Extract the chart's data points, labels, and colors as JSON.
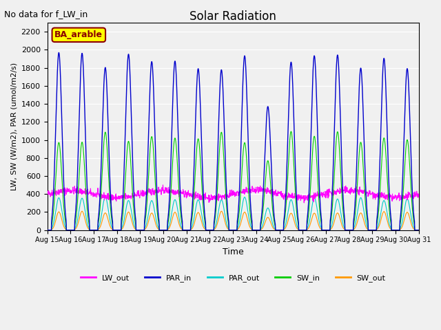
{
  "title": "Solar Radiation",
  "suptitle": "No data for f_LW_in",
  "xlabel": "Time",
  "ylabel": "LW, SW (W/m2), PAR (umol/m2/s)",
  "site_label": "BA_arable",
  "ylim": [
    0,
    2300
  ],
  "yticks": [
    0,
    200,
    400,
    600,
    800,
    1000,
    1200,
    1400,
    1600,
    1800,
    2000,
    2200
  ],
  "n_days": 16,
  "start_day": 15,
  "colors": {
    "LW_out": "#ff00ff",
    "PAR_in": "#0000cc",
    "PAR_out": "#00cccc",
    "SW_in": "#00cc00",
    "SW_out": "#ff9900"
  },
  "legend_labels": [
    "LW_out",
    "PAR_in",
    "PAR_out",
    "SW_in",
    "SW_out"
  ],
  "background_color": "#e8e8e8",
  "plot_background": "#f0f0f0"
}
